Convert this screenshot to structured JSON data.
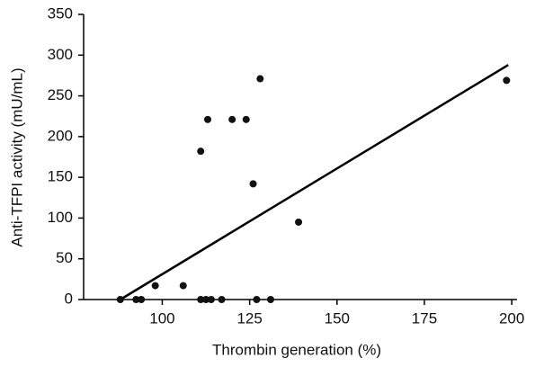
{
  "chart_data": {
    "type": "scatter",
    "x_label": "Thrombin generation (%)",
    "y_label": "Anti-TFPI activity (mU/mL)",
    "x": [
      88,
      92.5,
      94,
      98,
      106,
      111,
      111,
      112.5,
      114,
      113,
      117,
      120,
      124,
      126,
      127,
      128,
      131,
      139,
      198.5
    ],
    "values": [
      0,
      0,
      0,
      17,
      17,
      182,
      0,
      0,
      0,
      221,
      0,
      221,
      221,
      142,
      0,
      271,
      0,
      95,
      269
    ],
    "color": "#111111",
    "trend_line": {
      "x": [
        88,
        199
      ],
      "values": [
        0,
        288
      ],
      "color": "#000000"
    },
    "xlim": [
      77.5,
      201.5
    ],
    "xticks": [
      100,
      125,
      150,
      175,
      200
    ],
    "ylim": [
      0,
      350
    ],
    "yticks": [
      0,
      50,
      100,
      150,
      200,
      250,
      300,
      350
    ]
  }
}
